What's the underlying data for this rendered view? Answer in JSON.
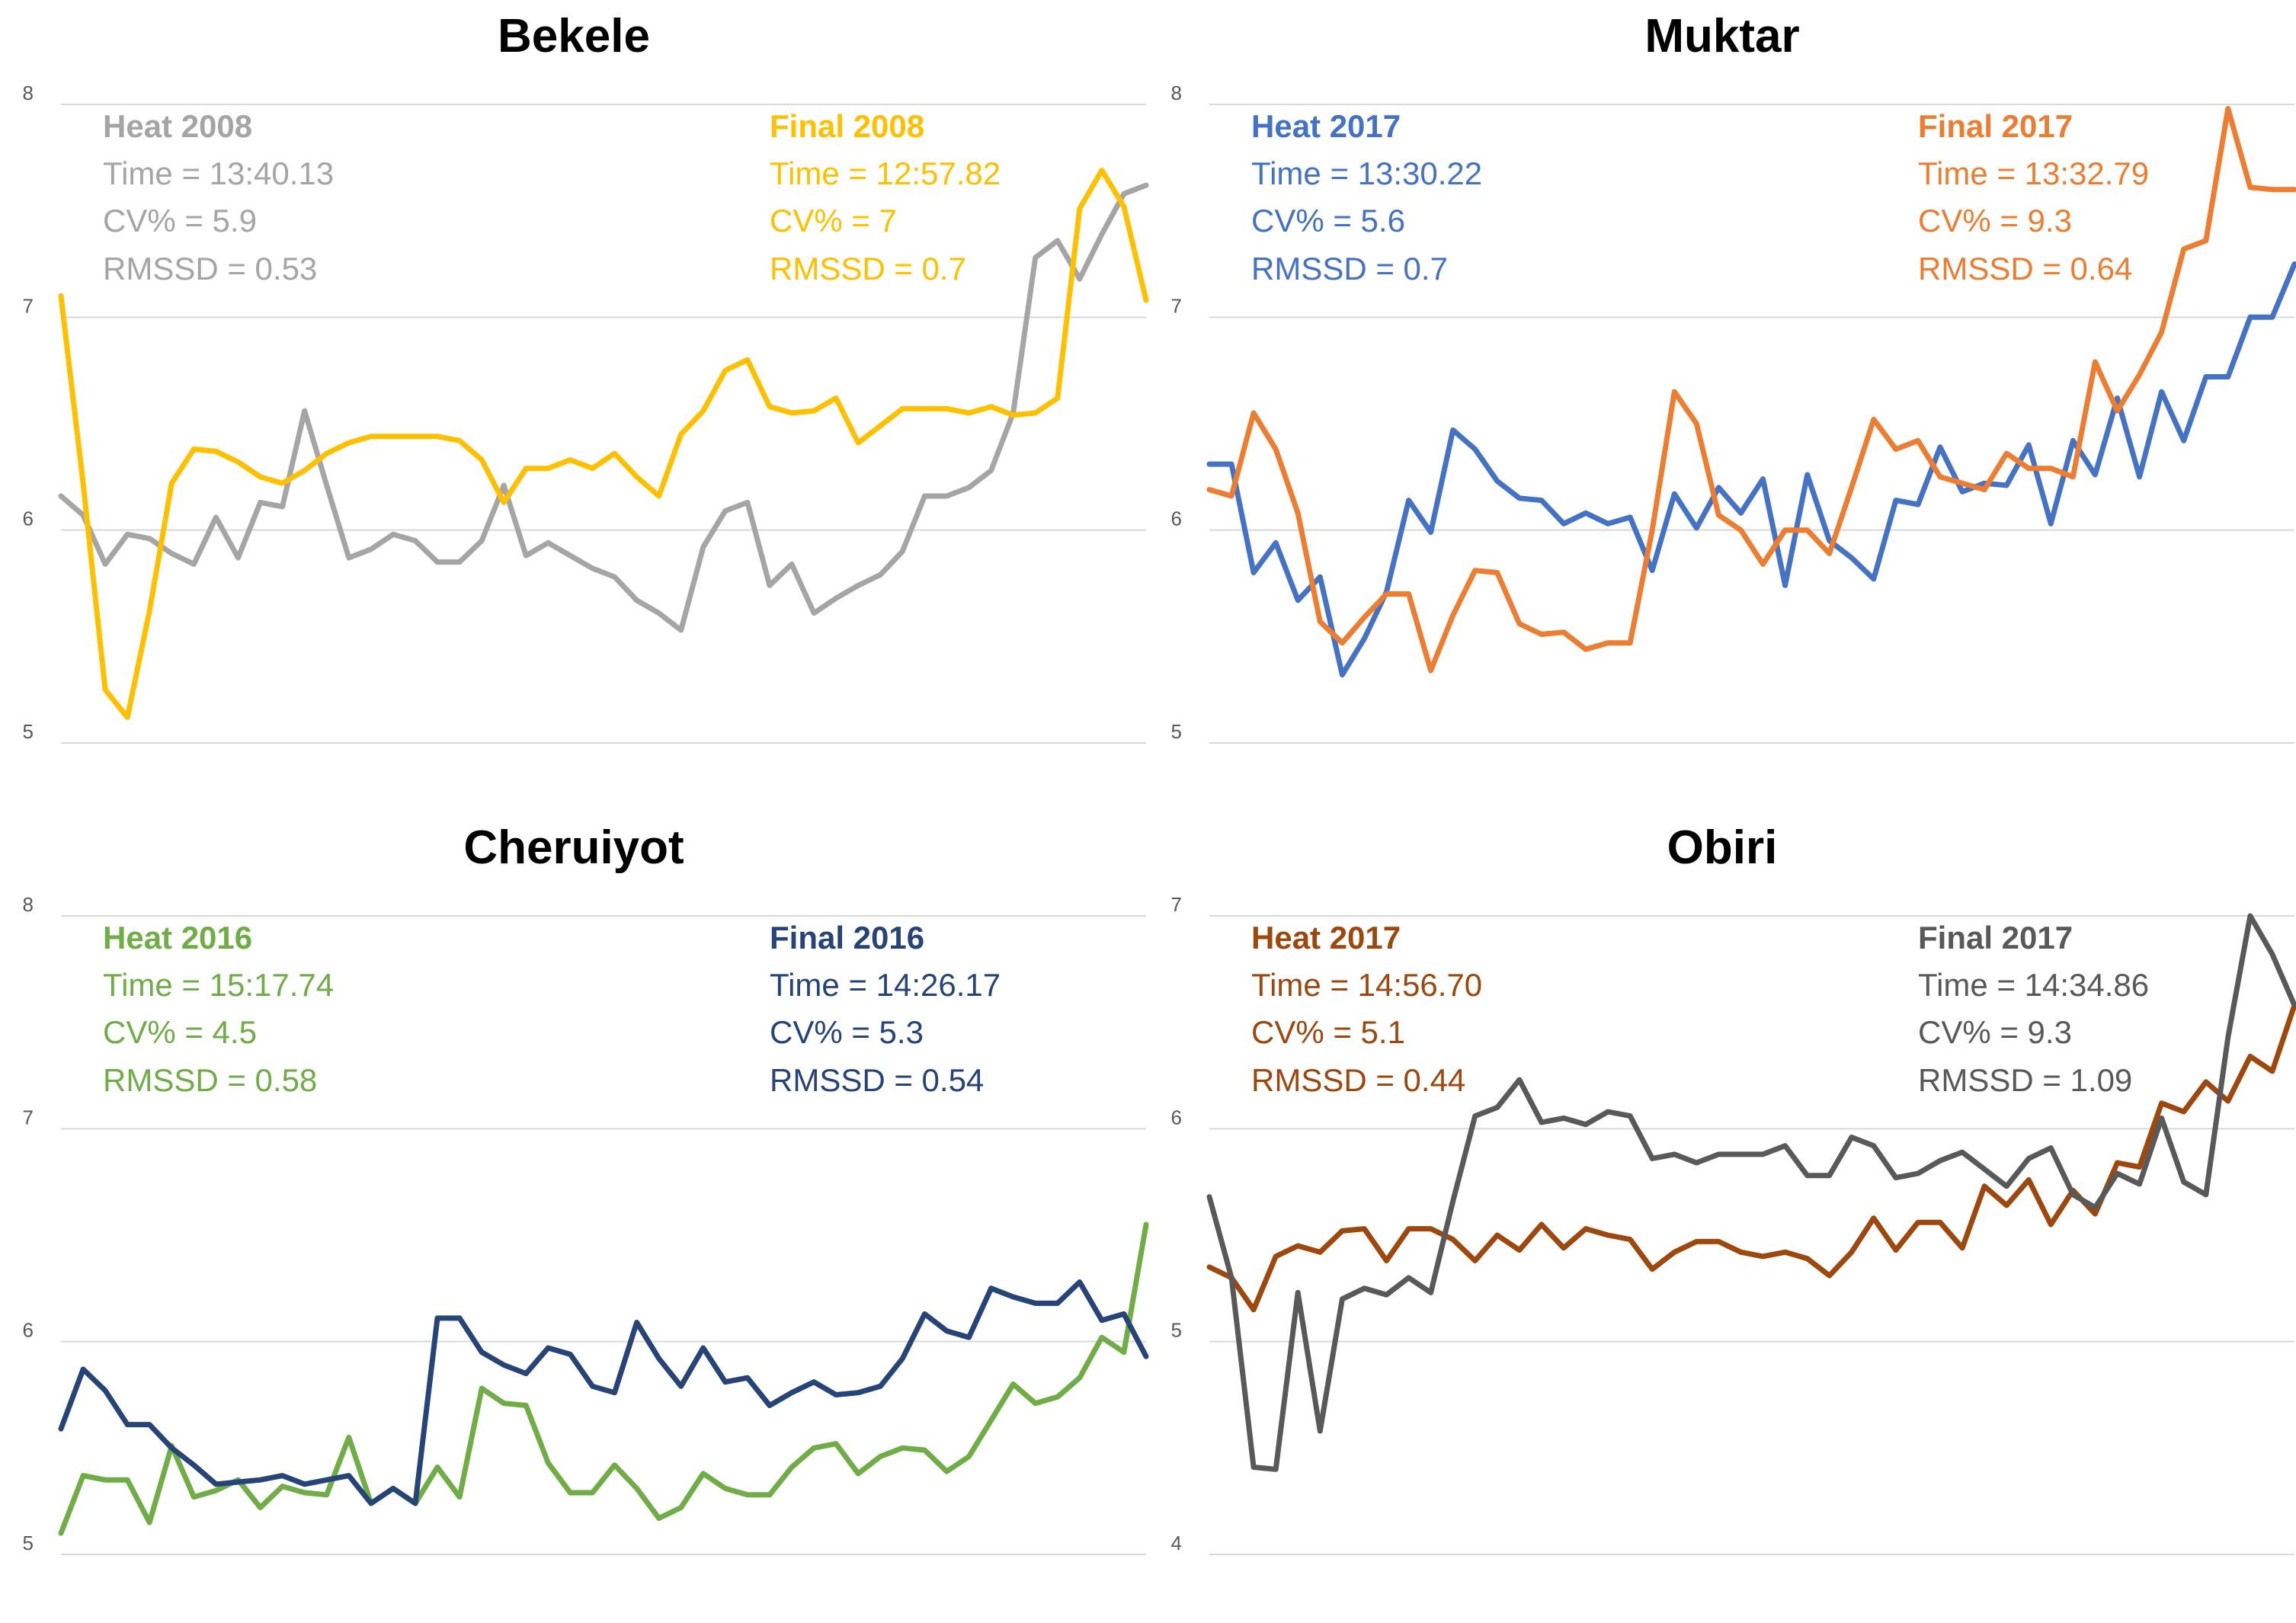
{
  "chart_data": [
    {
      "type": "line",
      "title": "Bekele",
      "ylim": [
        5,
        8
      ],
      "yticks": [
        "5",
        "6",
        "7",
        "8"
      ],
      "x": [
        1,
        2,
        3,
        4,
        5,
        6,
        7,
        8,
        9,
        10,
        11,
        12,
        13,
        14,
        15,
        16,
        17,
        18,
        19,
        20,
        21,
        22,
        23,
        24,
        25,
        26,
        27,
        28,
        29,
        30,
        31,
        32,
        33,
        34,
        35,
        36,
        37,
        38,
        39,
        40,
        41,
        42,
        43,
        44,
        45,
        46,
        47,
        48,
        49,
        50
      ],
      "series": [
        {
          "name": "Heat 2008",
          "color": "#a5a5a5",
          "stats": {
            "head": "Heat 2008",
            "time": "Time = 13:40.13",
            "cv": "CV% = 5.9",
            "rmssd": "RMSSD = 0.53"
          },
          "values": [
            6.16,
            6.07,
            5.84,
            5.98,
            5.96,
            5.89,
            5.84,
            6.06,
            5.87,
            6.13,
            6.11,
            6.56,
            6.21,
            5.87,
            5.91,
            5.98,
            5.95,
            5.85,
            5.85,
            5.95,
            6.21,
            5.88,
            5.94,
            5.88,
            5.82,
            5.78,
            5.67,
            5.61,
            5.53,
            5.92,
            6.09,
            6.13,
            5.74,
            5.84,
            5.61,
            5.68,
            5.74,
            5.79,
            5.9,
            6.16,
            6.16,
            6.2,
            6.28,
            6.55,
            7.28,
            7.36,
            7.18,
            7.39,
            7.58,
            7.62
          ]
        },
        {
          "name": "Final 2008",
          "color": "#ffc000",
          "stats": {
            "head": "Final 2008",
            "time": "Time = 12:57.82",
            "cv": "CV% = 7",
            "rmssd": "RMSSD = 0.7"
          },
          "values": [
            7.1,
            6.22,
            5.25,
            5.12,
            5.62,
            6.22,
            6.38,
            6.37,
            6.32,
            6.25,
            6.22,
            6.28,
            6.36,
            6.41,
            6.44,
            6.44,
            6.44,
            6.44,
            6.42,
            6.33,
            6.13,
            6.29,
            6.29,
            6.33,
            6.29,
            6.36,
            6.25,
            6.16,
            6.45,
            6.56,
            6.75,
            6.8,
            6.58,
            6.55,
            6.56,
            6.62,
            6.41,
            6.49,
            6.57,
            6.57,
            6.57,
            6.55,
            6.58,
            6.54,
            6.55,
            6.62,
            7.51,
            7.69,
            7.52,
            7.08
          ]
        }
      ]
    },
    {
      "type": "line",
      "title": "Muktar",
      "ylim": [
        5,
        8
      ],
      "yticks": [
        "5",
        "6",
        "7",
        "8"
      ],
      "x": [
        1,
        2,
        3,
        4,
        5,
        6,
        7,
        8,
        9,
        10,
        11,
        12,
        13,
        14,
        15,
        16,
        17,
        18,
        19,
        20,
        21,
        22,
        23,
        24,
        25,
        26,
        27,
        28,
        29,
        30,
        31,
        32,
        33,
        34,
        35,
        36,
        37,
        38,
        39,
        40,
        41,
        42,
        43,
        44,
        45,
        46,
        47,
        48,
        49,
        50
      ],
      "series": [
        {
          "name": "Heat 2017",
          "color": "#4472c4",
          "stats": {
            "head": "Heat 2017",
            "time": "Time = 13:30.22",
            "cv": "CV% = 5.6",
            "rmssd": "RMSSD = 0.7"
          },
          "values": [
            6.31,
            6.31,
            5.8,
            5.94,
            5.67,
            5.78,
            5.32,
            5.49,
            5.71,
            6.14,
            5.99,
            6.47,
            6.38,
            6.23,
            6.15,
            6.14,
            6.03,
            6.08,
            6.03,
            6.06,
            5.81,
            6.17,
            6.01,
            6.2,
            6.08,
            6.24,
            5.74,
            6.26,
            5.95,
            5.87,
            5.77,
            6.14,
            6.12,
            6.39,
            6.18,
            6.22,
            6.21,
            6.4,
            6.03,
            6.42,
            6.26,
            6.62,
            6.25,
            6.65,
            6.42,
            6.72,
            6.72,
            7.0,
            7.0,
            7.25
          ]
        },
        {
          "name": "Final 2017",
          "color": "#ed7d31",
          "stats": {
            "head": "Final 2017",
            "time": "Time = 13:32.79",
            "cv": "CV% = 9.3",
            "rmssd": "RMSSD = 0.64"
          },
          "values": [
            6.19,
            6.16,
            6.55,
            6.38,
            6.08,
            5.57,
            5.47,
            5.59,
            5.7,
            5.7,
            5.34,
            5.6,
            5.81,
            5.8,
            5.56,
            5.51,
            5.52,
            5.44,
            5.47,
            5.47,
            6.0,
            6.65,
            6.5,
            6.07,
            6.0,
            5.84,
            6.0,
            6.0,
            5.89,
            6.2,
            6.52,
            6.38,
            6.42,
            6.25,
            6.22,
            6.19,
            6.36,
            6.29,
            6.29,
            6.25,
            6.79,
            6.56,
            6.73,
            6.93,
            7.32,
            7.36,
            7.98,
            7.61,
            7.6,
            7.6
          ]
        }
      ]
    },
    {
      "type": "line",
      "title": "Cheruiyot",
      "ylim": [
        5,
        8
      ],
      "yticks": [
        "5",
        "6",
        "7",
        "8"
      ],
      "x": [
        1,
        2,
        3,
        4,
        5,
        6,
        7,
        8,
        9,
        10,
        11,
        12,
        13,
        14,
        15,
        16,
        17,
        18,
        19,
        20,
        21,
        22,
        23,
        24,
        25,
        26,
        27,
        28,
        29,
        30,
        31,
        32,
        33,
        34,
        35,
        36,
        37,
        38,
        39,
        40,
        41,
        42,
        43,
        44,
        45,
        46,
        47,
        48,
        49,
        50
      ],
      "series": [
        {
          "name": "Heat 2016",
          "color": "#70ad47",
          "stats": {
            "head": "Heat 2016",
            "time": "Time = 15:17.74",
            "cv": "CV% = 4.5",
            "rmssd": "RMSSD = 0.58"
          },
          "values": [
            5.1,
            5.37,
            5.35,
            5.35,
            5.15,
            5.51,
            5.27,
            5.3,
            5.35,
            5.22,
            5.32,
            5.29,
            5.28,
            5.55,
            5.24,
            5.31,
            5.24,
            5.41,
            5.27,
            5.78,
            5.71,
            5.7,
            5.43,
            5.29,
            5.29,
            5.42,
            5.31,
            5.17,
            5.22,
            5.38,
            5.31,
            5.28,
            5.28,
            5.41,
            5.5,
            5.52,
            5.38,
            5.46,
            5.5,
            5.49,
            5.39,
            5.46,
            5.63,
            5.8,
            5.71,
            5.74,
            5.83,
            6.02,
            5.95,
            6.55
          ]
        },
        {
          "name": "Final 2016",
          "color": "#264478",
          "stats": {
            "head": "Final 2016",
            "time": "Time = 14:26.17",
            "cv": "CV% = 5.3",
            "rmssd": "RMSSD = 0.54"
          },
          "values": [
            5.59,
            5.87,
            5.77,
            5.61,
            5.61,
            5.5,
            5.42,
            5.33,
            5.34,
            5.35,
            5.37,
            5.33,
            5.35,
            5.37,
            5.24,
            5.31,
            5.24,
            6.11,
            6.11,
            5.95,
            5.89,
            5.85,
            5.97,
            5.94,
            5.79,
            5.76,
            6.09,
            5.92,
            5.79,
            5.97,
            5.81,
            5.83,
            5.7,
            5.76,
            5.81,
            5.75,
            5.76,
            5.79,
            5.92,
            6.13,
            6.05,
            6.02,
            6.25,
            6.21,
            6.18,
            6.18,
            6.28,
            6.1,
            6.13,
            5.93
          ]
        }
      ]
    },
    {
      "type": "line",
      "title": "Obiri",
      "ylim": [
        4,
        7
      ],
      "yticks": [
        "4",
        "5",
        "6",
        "7"
      ],
      "x": [
        1,
        2,
        3,
        4,
        5,
        6,
        7,
        8,
        9,
        10,
        11,
        12,
        13,
        14,
        15,
        16,
        17,
        18,
        19,
        20,
        21,
        22,
        23,
        24,
        25,
        26,
        27,
        28,
        29,
        30,
        31,
        32,
        33,
        34,
        35,
        36,
        37,
        38,
        39,
        40,
        41,
        42,
        43,
        44,
        45,
        46,
        47,
        48,
        49,
        50
      ],
      "series": [
        {
          "name": "Heat 2017",
          "color": "#9e480e",
          "stats": {
            "head": "Heat 2017",
            "time": "Time = 14:56.70",
            "cv": "CV% = 5.1",
            "rmssd": "RMSSD = 0.44"
          },
          "values": [
            5.35,
            5.3,
            5.15,
            5.4,
            5.45,
            5.42,
            5.52,
            5.53,
            5.38,
            5.53,
            5.53,
            5.48,
            5.38,
            5.5,
            5.43,
            5.55,
            5.44,
            5.53,
            5.5,
            5.48,
            5.34,
            5.42,
            5.47,
            5.47,
            5.42,
            5.4,
            5.42,
            5.39,
            5.31,
            5.42,
            5.58,
            5.43,
            5.56,
            5.56,
            5.44,
            5.73,
            5.64,
            5.76,
            5.55,
            5.71,
            5.6,
            5.84,
            5.82,
            6.12,
            6.08,
            6.22,
            6.13,
            6.34,
            6.27,
            6.58
          ]
        },
        {
          "name": "Final 2017",
          "color": "#595959",
          "stats": {
            "head": "Final 2017",
            "time": "Time = 14:34.86",
            "cv": "CV% = 9.3",
            "rmssd": "RMSSD = 1.09"
          },
          "values": [
            5.68,
            5.3,
            4.41,
            4.4,
            5.23,
            4.58,
            5.2,
            5.25,
            5.22,
            5.3,
            5.23,
            5.66,
            6.06,
            6.1,
            6.23,
            6.03,
            6.05,
            6.02,
            6.08,
            6.06,
            5.86,
            5.88,
            5.84,
            5.88,
            5.88,
            5.88,
            5.92,
            5.78,
            5.78,
            5.96,
            5.92,
            5.77,
            5.79,
            5.85,
            5.89,
            5.81,
            5.73,
            5.86,
            5.91,
            5.69,
            5.63,
            5.79,
            5.74,
            6.05,
            5.75,
            5.69,
            6.43,
            7.0,
            6.82,
            6.58
          ]
        }
      ]
    }
  ]
}
